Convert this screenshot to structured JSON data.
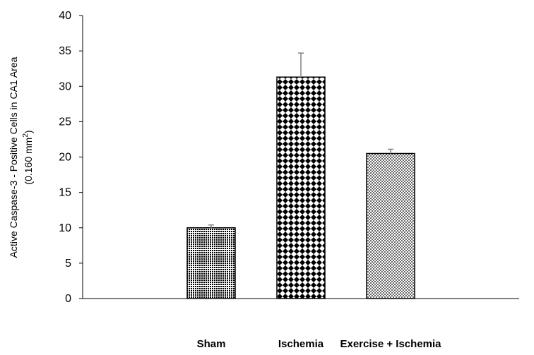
{
  "chart_data": {
    "type": "bar",
    "categories": [
      "Sham",
      "Ischemia",
      "Exercise + Ischemia"
    ],
    "values": [
      10,
      31.3,
      20.5
    ],
    "errors": [
      0.4,
      3.4,
      0.6
    ],
    "bar_patterns": [
      "dense-dots",
      "checkerboard-diamonds",
      "sparse-dots"
    ],
    "ylabel_line1": "Active Caspase-3 - Positive Cells in CA1 Area",
    "ylabel_line2_prefix": "(0.160 mm",
    "ylabel_line2_sup": "2",
    "ylabel_line2_suffix": ")",
    "ylim": [
      0,
      40
    ],
    "ytick_step": 5,
    "grid": false,
    "colors": {
      "bar_fill": "#000000",
      "bar_background": "#ffffff",
      "error_bar": "#808080",
      "axis": "#000000"
    }
  }
}
